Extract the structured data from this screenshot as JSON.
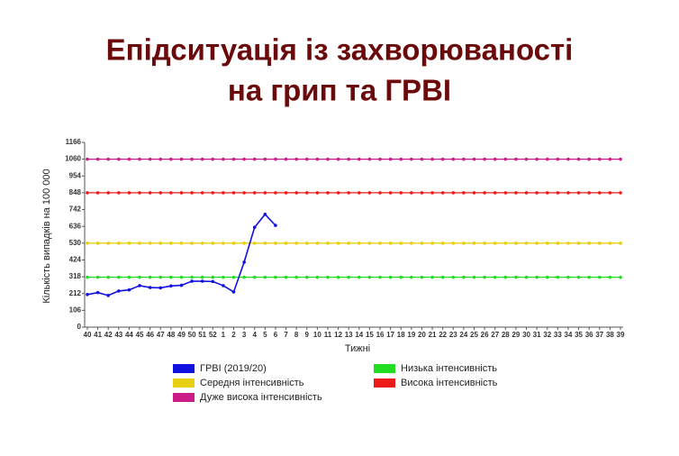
{
  "chart_data": {
    "type": "line",
    "title": [
      "Епідситуація із захворюваності",
      "на грип та ГРВІ"
    ],
    "x_label": "Тижні",
    "y_label": "Кількість випадків на 100 000",
    "categories": [
      "40",
      "41",
      "42",
      "43",
      "44",
      "45",
      "46",
      "47",
      "48",
      "49",
      "50",
      "51",
      "52",
      "1",
      "2",
      "3",
      "4",
      "5",
      "6",
      "7",
      "8",
      "9",
      "10",
      "11",
      "12",
      "13",
      "14",
      "15",
      "16",
      "17",
      "18",
      "19",
      "20",
      "21",
      "22",
      "23",
      "24",
      "25",
      "26",
      "27",
      "28",
      "29",
      "30",
      "31",
      "32",
      "33",
      "34",
      "35",
      "36",
      "37",
      "38",
      "39"
    ],
    "ylim": [
      0,
      1166
    ],
    "yticks": [
      0,
      106,
      212,
      318,
      424,
      530,
      636,
      742,
      848,
      954,
      1060,
      1166
    ],
    "series": [
      {
        "name": "ГРВІ (2019/20)",
        "color": "#1010e0",
        "values": [
          206,
          218,
          200,
          228,
          235,
          262,
          250,
          248,
          260,
          264,
          290,
          290,
          288,
          262,
          222,
          410,
          630,
          712,
          642,
          null,
          null,
          null,
          null,
          null,
          null,
          null,
          null,
          null,
          null,
          null,
          null,
          null,
          null,
          null,
          null,
          null,
          null,
          null,
          null,
          null,
          null,
          null,
          null,
          null,
          null,
          null,
          null,
          null,
          null,
          null,
          null,
          null
        ]
      },
      {
        "name": "Низька інтенсивність",
        "color": "#22dd22",
        "values": [
          315,
          315,
          315,
          315,
          315,
          315,
          315,
          315,
          315,
          315,
          315,
          315,
          315,
          315,
          315,
          315,
          315,
          315,
          315,
          315,
          315,
          315,
          315,
          315,
          315,
          315,
          315,
          315,
          315,
          315,
          315,
          315,
          315,
          315,
          315,
          315,
          315,
          315,
          315,
          315,
          315,
          315,
          315,
          315,
          315,
          315,
          315,
          315,
          315,
          315,
          315,
          315
        ]
      },
      {
        "name": "Середня інтенсивність",
        "color": "#e8d010",
        "values": [
          530,
          530,
          530,
          530,
          530,
          530,
          530,
          530,
          530,
          530,
          530,
          530,
          530,
          530,
          530,
          530,
          530,
          530,
          530,
          530,
          530,
          530,
          530,
          530,
          530,
          530,
          530,
          530,
          530,
          530,
          530,
          530,
          530,
          530,
          530,
          530,
          530,
          530,
          530,
          530,
          530,
          530,
          530,
          530,
          530,
          530,
          530,
          530,
          530,
          530,
          530,
          530
        ]
      },
      {
        "name": "Висока інтенсивність",
        "color": "#ee1a1a",
        "values": [
          848,
          848,
          848,
          848,
          848,
          848,
          848,
          848,
          848,
          848,
          848,
          848,
          848,
          848,
          848,
          848,
          848,
          848,
          848,
          848,
          848,
          848,
          848,
          848,
          848,
          848,
          848,
          848,
          848,
          848,
          848,
          848,
          848,
          848,
          848,
          848,
          848,
          848,
          848,
          848,
          848,
          848,
          848,
          848,
          848,
          848,
          848,
          848,
          848,
          848,
          848,
          848
        ]
      },
      {
        "name": "Дуже висока інтенсивність",
        "color": "#cc1a88",
        "values": [
          1060,
          1060,
          1060,
          1060,
          1060,
          1060,
          1060,
          1060,
          1060,
          1060,
          1060,
          1060,
          1060,
          1060,
          1060,
          1060,
          1060,
          1060,
          1060,
          1060,
          1060,
          1060,
          1060,
          1060,
          1060,
          1060,
          1060,
          1060,
          1060,
          1060,
          1060,
          1060,
          1060,
          1060,
          1060,
          1060,
          1060,
          1060,
          1060,
          1060,
          1060,
          1060,
          1060,
          1060,
          1060,
          1060,
          1060,
          1060,
          1060,
          1060,
          1060,
          1060
        ]
      }
    ]
  }
}
